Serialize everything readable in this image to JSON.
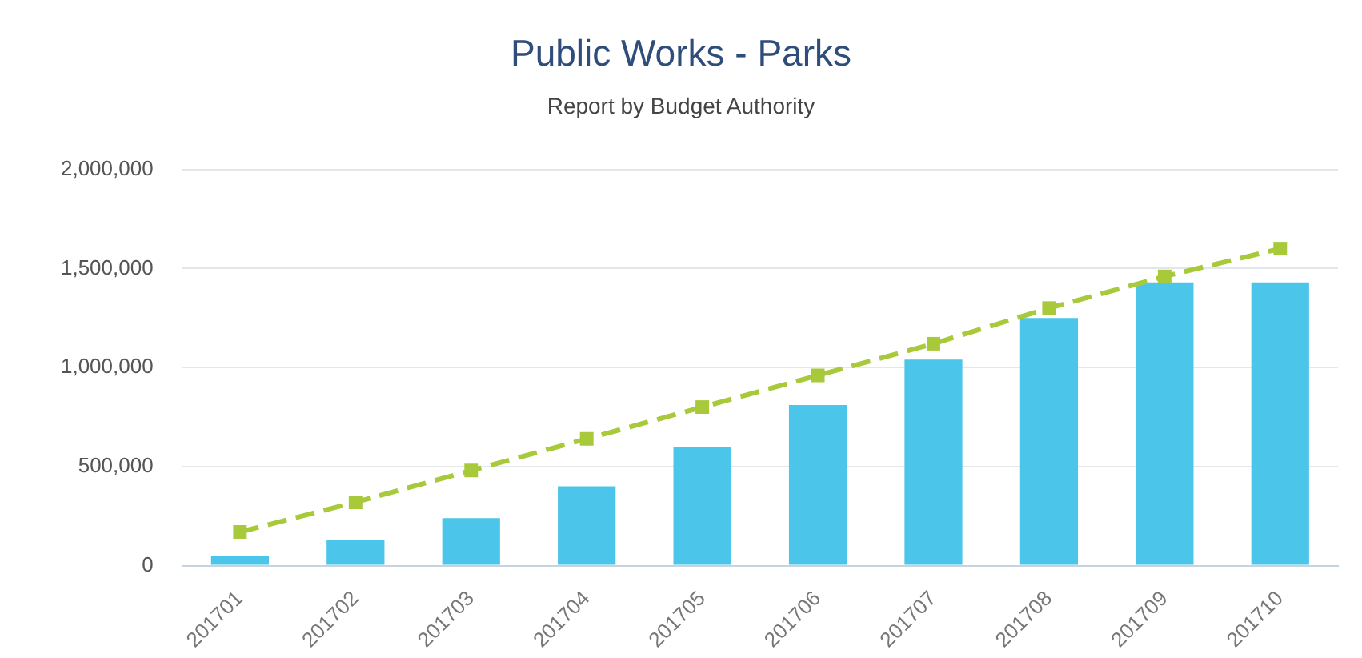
{
  "chart_data": {
    "type": "bar",
    "title": "Public Works - Parks",
    "subtitle": "Report by Budget Authority",
    "categories": [
      "201701",
      "201702",
      "201703",
      "201704",
      "201705",
      "201706",
      "201707",
      "201708",
      "201709",
      "201710"
    ],
    "series": [
      {
        "color": "#4bc5ea",
        "values": [
          50000,
          130000,
          240000,
          400000,
          600000,
          810000,
          1040000,
          1250000,
          1430000,
          1430000
        ]
      },
      {
        "type": "line",
        "color": "#a8c93a",
        "marker": "square",
        "line_style": "dashed",
        "values": [
          170000,
          320000,
          480000,
          640000,
          800000,
          960000,
          1120000,
          1300000,
          1460000,
          1600000
        ]
      }
    ],
    "ylim": [
      0,
      2000000
    ],
    "yticks": [
      0,
      {
        "value": 500000,
        "label": "500,000"
      },
      {
        "value": 1000000,
        "label": "1,000,000"
      },
      {
        "value": 1500000,
        "label": "1,500,000"
      },
      {
        "value": 2000000,
        "label": "2,000,000"
      }
    ],
    "grid": "y",
    "legend": false
  }
}
